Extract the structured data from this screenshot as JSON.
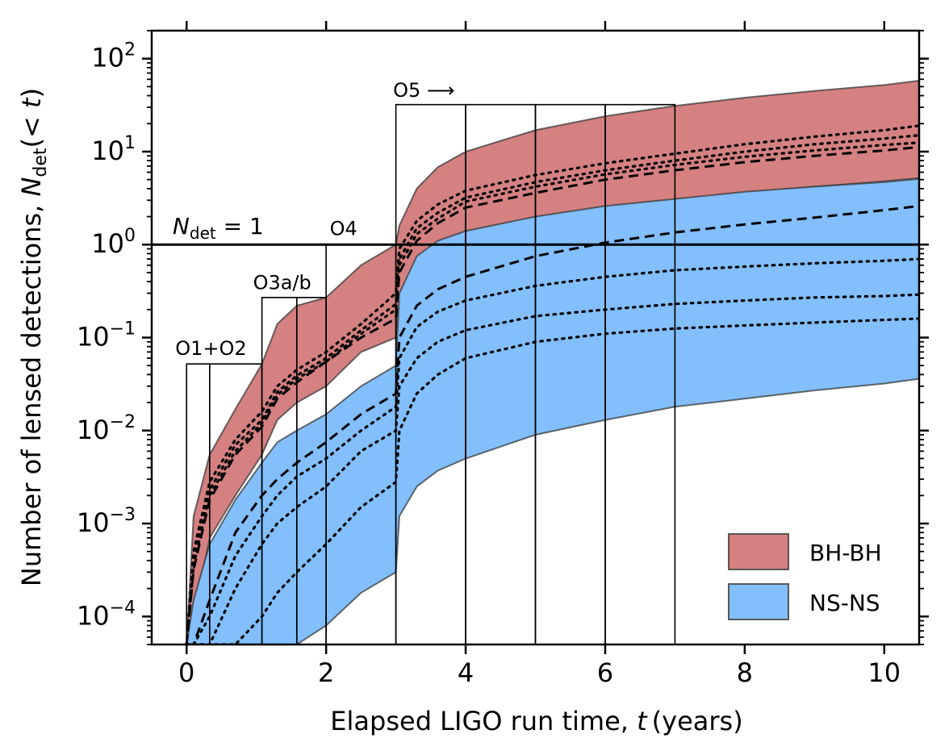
{
  "chart_data": {
    "type": "area",
    "xlabel_text": "Elapsed LIGO run time, ",
    "xlabel_var": "t",
    "xlabel_unit": "(years)",
    "ylabel_text": "Number of lensed detections, ",
    "ylabel_var": "N",
    "ylabel_sub": "det",
    "ylabel_arg": "(< ",
    "ylabel_arg_var": "t",
    "ylabel_close": ")",
    "xlim": [
      -0.5,
      10.5
    ],
    "ylim": [
      5e-05,
      200
    ],
    "yscale": "log",
    "xticks": [
      0,
      2,
      4,
      6,
      8,
      10
    ],
    "xtick_labels": [
      "0",
      "2",
      "4",
      "6",
      "8",
      "10"
    ],
    "ytick_exps": [
      -4,
      -3,
      -2,
      -1,
      0,
      1,
      2
    ],
    "ytick_base": "10",
    "ytick_exp_labels": [
      "−4",
      "−3",
      "−2",
      "−1",
      "0",
      "1",
      "2"
    ],
    "threshold": {
      "value": 1,
      "label_var": "N",
      "label_sub": "det",
      "label_rest": " = 1"
    },
    "run_labels": [
      {
        "text": "O1+O2",
        "x": 0.35,
        "y": 0.065
      },
      {
        "text": "O3a/b",
        "x": 1.37,
        "y": 0.33
      },
      {
        "text": "O4",
        "x": 2.25,
        "y": 1.27
      },
      {
        "text": "O5 ⟶",
        "x": 3.4,
        "y": 39
      }
    ],
    "boxes": [
      {
        "x0": 0.0,
        "x1": 0.33,
        "top": 0.052
      },
      {
        "x0": 0.33,
        "x1": 1.08,
        "top": 0.052
      },
      {
        "x0": 1.08,
        "x1": 1.58,
        "top": 0.27
      },
      {
        "x0": 1.58,
        "x1": 2.0,
        "top": 0.27
      },
      {
        "x0": 2.0,
        "x1": 3.0,
        "top": 1.0
      },
      {
        "x0": 3.0,
        "x1": 4.0,
        "top": 32
      },
      {
        "x0": 4.0,
        "x1": 5.0,
        "top": 32
      },
      {
        "x0": 5.0,
        "x1": 6.0,
        "top": 32
      },
      {
        "x0": 6.0,
        "x1": 7.0,
        "top": 32
      }
    ],
    "curve_x": [
      0,
      0.1,
      0.33,
      0.7,
      1.08,
      1.3,
      1.58,
      2.0,
      2.5,
      3.0,
      3.05,
      3.3,
      3.6,
      4.0,
      5.0,
      6.0,
      7.0,
      8.0,
      9.0,
      10.0,
      10.5
    ],
    "series": [
      {
        "name": "BH-BH",
        "color": "#d58181",
        "upper": [
          5e-05,
          0.0012,
          0.0055,
          0.017,
          0.052,
          0.14,
          0.22,
          0.27,
          0.6,
          1.0,
          1.6,
          4.0,
          6.8,
          10,
          17,
          24,
          31,
          38,
          45,
          52,
          58
        ],
        "lower": [
          5e-05,
          0.0001,
          0.0007,
          0.002,
          0.0055,
          0.013,
          0.02,
          0.03,
          0.07,
          0.1,
          0.25,
          0.45,
          0.65,
          0.9,
          1.6,
          2.2,
          2.9,
          3.6,
          4.2,
          4.8,
          5.2
        ],
        "median": [
          5e-05,
          0.00032,
          0.0018,
          0.0055,
          0.011,
          0.022,
          0.033,
          0.055,
          0.1,
          0.16,
          0.5,
          1.1,
          1.7,
          2.5,
          3.6,
          5.0,
          6.3,
          7.7,
          9.0,
          10.3,
          11.2
        ],
        "dotted": [
          [
            5e-05,
            0.0005,
            0.0028,
            0.008,
            0.016,
            0.03,
            0.045,
            0.07,
            0.14,
            0.3,
            0.9,
            1.8,
            2.7,
            3.8,
            5.6,
            7.5,
            9.5,
            12,
            14.5,
            17,
            19
          ],
          [
            5e-05,
            0.0004,
            0.0023,
            0.007,
            0.013,
            0.026,
            0.039,
            0.06,
            0.12,
            0.23,
            0.7,
            1.5,
            2.2,
            3.2,
            4.7,
            6.3,
            8.0,
            10,
            12,
            13.8,
            15
          ],
          [
            5e-05,
            0.00035,
            0.002,
            0.006,
            0.012,
            0.024,
            0.036,
            0.055,
            0.11,
            0.2,
            0.6,
            1.3,
            1.9,
            2.9,
            4.2,
            5.7,
            7.2,
            8.8,
            10.3,
            11.8,
            12.5
          ]
        ]
      },
      {
        "name": "NS-NS",
        "color": "#82bffc",
        "upper": [
          5e-05,
          0.00015,
          0.0006,
          0.0018,
          0.0045,
          0.0075,
          0.01,
          0.015,
          0.03,
          0.05,
          0.3,
          0.75,
          1.1,
          1.4,
          2.0,
          2.6,
          3.1,
          3.7,
          4.2,
          4.7,
          5.1
        ],
        "lower": [
          5e-05,
          5e-05,
          5e-05,
          5e-05,
          5e-05,
          5e-05,
          5e-05,
          8e-05,
          0.00018,
          0.0003,
          0.0012,
          0.0025,
          0.0037,
          0.005,
          0.009,
          0.013,
          0.018,
          0.022,
          0.027,
          0.032,
          0.036
        ],
        "median": [
          5e-05,
          5e-05,
          0.00015,
          0.0008,
          0.002,
          0.003,
          0.0045,
          0.0075,
          0.015,
          0.025,
          0.1,
          0.22,
          0.33,
          0.45,
          0.75,
          1.05,
          1.35,
          1.65,
          1.95,
          2.35,
          2.6
        ],
        "dotted": [
          [
            5e-05,
            5e-05,
            0.0001,
            0.00045,
            0.0012,
            0.002,
            0.0032,
            0.005,
            0.01,
            0.018,
            0.06,
            0.13,
            0.19,
            0.25,
            0.36,
            0.45,
            0.53,
            0.58,
            0.63,
            0.67,
            0.7
          ],
          [
            5e-05,
            5e-05,
            5e-05,
            0.0002,
            0.0006,
            0.001,
            0.0015,
            0.0025,
            0.006,
            0.01,
            0.03,
            0.06,
            0.09,
            0.12,
            0.17,
            0.2,
            0.23,
            0.25,
            0.27,
            0.28,
            0.29
          ],
          [
            5e-05,
            5e-05,
            5e-05,
            5e-05,
            0.0001,
            0.00018,
            0.0003,
            0.0006,
            0.0015,
            0.0028,
            0.01,
            0.025,
            0.04,
            0.06,
            0.09,
            0.11,
            0.125,
            0.135,
            0.145,
            0.155,
            0.16
          ]
        ]
      }
    ],
    "legend": {
      "placement": "lower-right",
      "entries": [
        {
          "label": "BH-BH",
          "color": "#d58181"
        },
        {
          "label": "NS-NS",
          "color": "#82bffc"
        }
      ]
    }
  }
}
